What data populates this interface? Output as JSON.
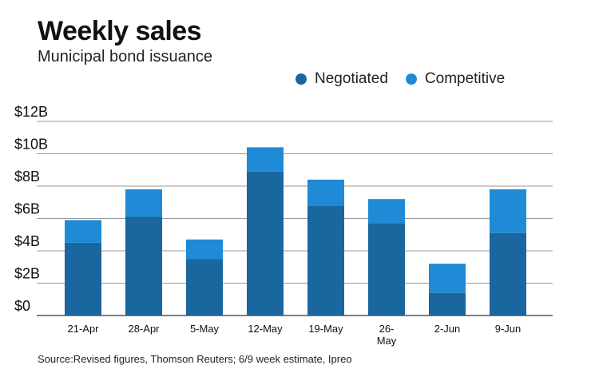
{
  "chart_data": {
    "type": "bar",
    "stacked": true,
    "title": "Weekly sales",
    "subtitle": "Municipal bond issuance",
    "categories": [
      "21-Apr",
      "28-Apr",
      "5-May",
      "12-May",
      "19-May",
      "26-May",
      "2-Jun",
      "9-Jun"
    ],
    "category_lines": [
      [
        "21-Apr"
      ],
      [
        "28-Apr"
      ],
      [
        "5-May"
      ],
      [
        "12-May"
      ],
      [
        "19-May"
      ],
      [
        "26-",
        "May"
      ],
      [
        "2-Jun"
      ],
      [
        "9-Jun"
      ]
    ],
    "series": [
      {
        "name": "Negotiated",
        "color": "#1a669e",
        "values": [
          4.5,
          6.1,
          3.5,
          8.9,
          6.8,
          5.7,
          1.4,
          5.1
        ]
      },
      {
        "name": "Competitive",
        "color": "#1f8ad6",
        "values": [
          1.4,
          1.7,
          1.2,
          1.5,
          1.6,
          1.5,
          1.8,
          2.7
        ]
      }
    ],
    "ylim": [
      0,
      12
    ],
    "yticks": [
      0,
      2,
      4,
      6,
      8,
      10,
      12
    ],
    "ytick_labels": [
      "$0",
      "$2B",
      "$4B",
      "$6B",
      "$8B",
      "$10B",
      "$12B"
    ],
    "grid": true,
    "legend_position": "top-right",
    "source": "Source:Revised figures, Thomson Reuters; 6/9 week estimate, Ipreo"
  }
}
